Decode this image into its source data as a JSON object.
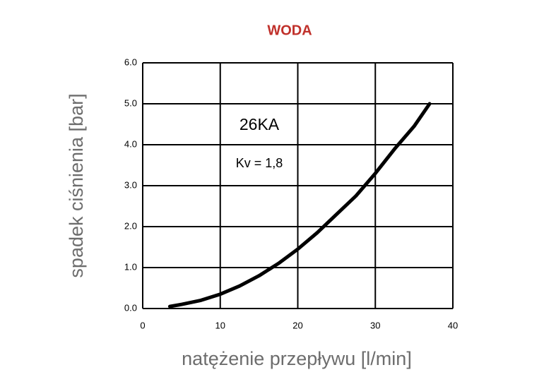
{
  "chart_data": {
    "type": "line",
    "title": "WODA",
    "xlabel": "natężenie przepływu [l/min]",
    "ylabel": "spadek ciśnienia [bar]",
    "annotations": [
      "26KA",
      "Kv = 1,8"
    ],
    "x": [
      3.5,
      5,
      7.5,
      10,
      12.5,
      15,
      17.5,
      20,
      22.5,
      25,
      27.5,
      30,
      32.5,
      35,
      37
    ],
    "series": [
      {
        "name": "26KA",
        "color": "#000000",
        "values": [
          0.05,
          0.1,
          0.2,
          0.35,
          0.55,
          0.8,
          1.1,
          1.45,
          1.85,
          2.3,
          2.75,
          3.3,
          3.9,
          4.45,
          5.0
        ]
      }
    ],
    "xlim": [
      0,
      40
    ],
    "xticks": [
      0,
      10,
      20,
      30,
      40
    ],
    "ylim": [
      0,
      6
    ],
    "yticks": [
      {
        "value": 0,
        "label": "0.0"
      },
      {
        "value": 1,
        "label": "1.0"
      },
      {
        "value": 2,
        "label": "2.0"
      },
      {
        "value": 3,
        "label": "3.0"
      },
      {
        "value": 4,
        "label": "4.0"
      },
      {
        "value": 5,
        "label": "5.0"
      },
      {
        "value": 6,
        "label": "6.0"
      }
    ],
    "grid": true
  }
}
